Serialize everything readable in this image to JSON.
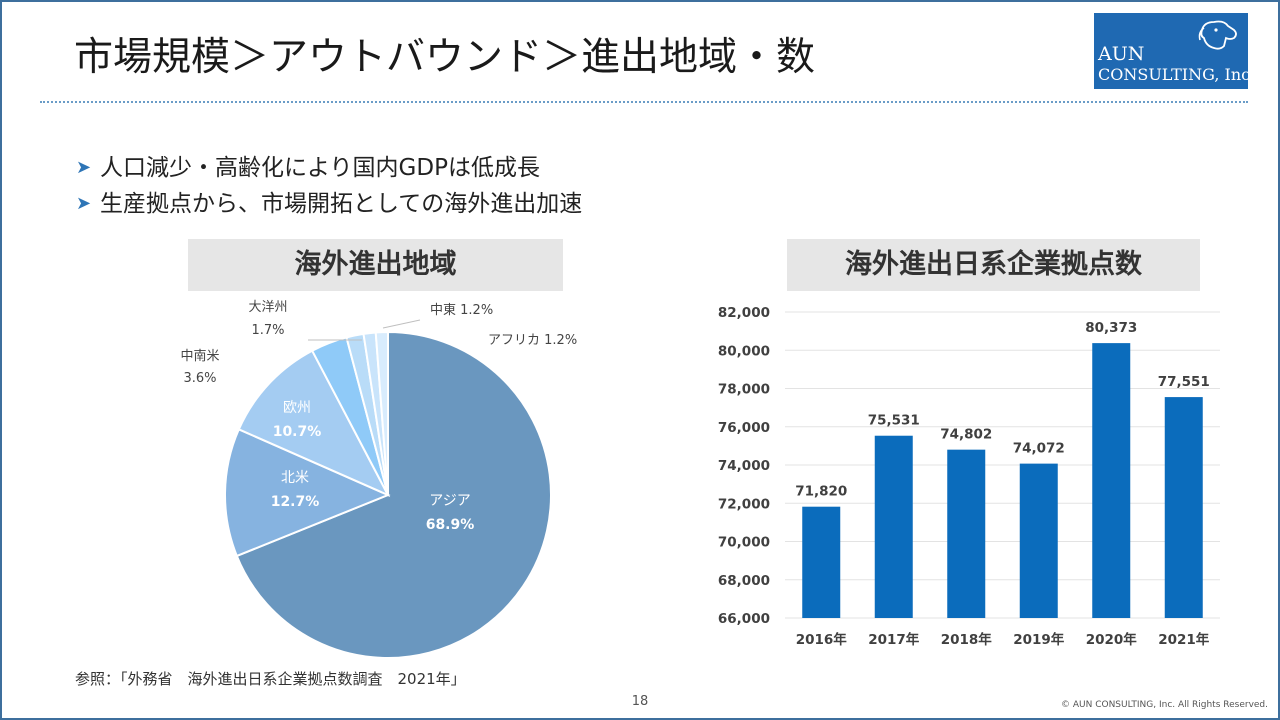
{
  "slide": {
    "title": "市場規模＞アウトバウンド＞進出地域・数",
    "bullets": [
      "人口減少・高齢化により国内GDPは低成長",
      "生産拠点から、市場開拓としての海外進出加速"
    ],
    "footnote": "参照：「外務省　海外進出日系企業拠点数調査　2021年」",
    "page_number": "18",
    "copyright": "© AUN CONSULTING, Inc. All Rights Reserved."
  },
  "logo": {
    "line1": "AUN",
    "line2": "CONSULTING, Inc.",
    "icon": "dog-icon"
  },
  "panels": {
    "left_title": "海外進出地域",
    "right_title": "海外進出日系企業拠点数"
  },
  "colors": {
    "frame": "#3d6f9d",
    "bar": "#0b6cbc",
    "pie_asia": "#6a97bf",
    "pie_na": "#86b3e0",
    "pie_eu": "#a4ccf2",
    "pie_la": "#8fcaf8",
    "pie_oceania": "#b9dcf8",
    "pie_me": "#c9e4fb",
    "pie_af": "#d8ecfd"
  },
  "chart_data": [
    {
      "type": "pie",
      "title": "海外進出地域",
      "slices": [
        {
          "name": "アジア",
          "value": 68.9,
          "label": "68.9%"
        },
        {
          "name": "北米",
          "value": 12.7,
          "label": "12.7%"
        },
        {
          "name": "欧州",
          "value": 10.7,
          "label": "10.7%"
        },
        {
          "name": "中南米",
          "value": 3.6,
          "label": "3.6%"
        },
        {
          "name": "大洋州",
          "value": 1.7,
          "label": "1.7%"
        },
        {
          "name": "中東",
          "value": 1.2,
          "label": "1.2%"
        },
        {
          "name": "アフリカ",
          "value": 1.2,
          "label": "1.2%"
        }
      ]
    },
    {
      "type": "bar",
      "title": "海外進出日系企業拠点数",
      "categories": [
        "2016年",
        "2017年",
        "2018年",
        "2019年",
        "2020年",
        "2021年"
      ],
      "values": [
        71820,
        75531,
        74802,
        74072,
        80373,
        77551
      ],
      "value_labels": [
        "71,820",
        "75,531",
        "74,802",
        "74,072",
        "80,373",
        "77,551"
      ],
      "ylim": [
        66000,
        82000
      ],
      "yticks": [
        66000,
        68000,
        70000,
        72000,
        74000,
        76000,
        78000,
        80000,
        82000
      ],
      "ytick_labels": [
        "66,000",
        "68,000",
        "70,000",
        "72,000",
        "74,000",
        "76,000",
        "78,000",
        "80,000",
        "82,000"
      ],
      "grid": true
    }
  ]
}
